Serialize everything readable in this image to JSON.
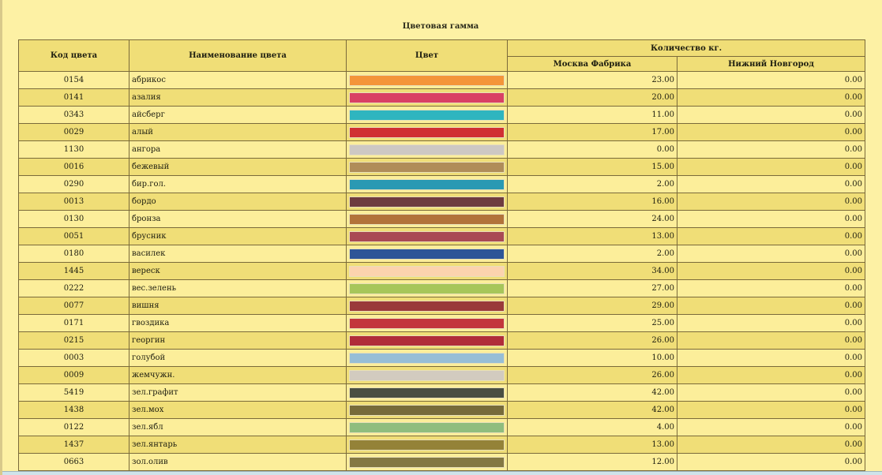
{
  "title": "Цветовая гамма",
  "columns": {
    "code": "Код цвета",
    "name": "Наименование цвета",
    "color": "Цвет",
    "quantity_group": "Количество кг.",
    "moscow": "Москва Фабрика",
    "nnovgorod": "Нижний Новгород"
  },
  "rows": [
    {
      "code": "0154",
      "name": "абрикос",
      "color": "#f4953a",
      "moscow": "23.00",
      "nnovgorod": "0.00"
    },
    {
      "code": "0141",
      "name": "азалия",
      "color": "#d94064",
      "moscow": "20.00",
      "nnovgorod": "0.00"
    },
    {
      "code": "0343",
      "name": "айсберг",
      "color": "#2fb5bf",
      "moscow": "11.00",
      "nnovgorod": "0.00"
    },
    {
      "code": "0029",
      "name": "алый",
      "color": "#d03033",
      "moscow": "17.00",
      "nnovgorod": "0.00"
    },
    {
      "code": "1130",
      "name": "ангора",
      "color": "#cdc8c3",
      "moscow": "0.00",
      "nnovgorod": "0.00"
    },
    {
      "code": "0016",
      "name": "бежевый",
      "color": "#b08d59",
      "moscow": "15.00",
      "nnovgorod": "0.00"
    },
    {
      "code": "0290",
      "name": "бир.гол.",
      "color": "#2a99b3",
      "moscow": "2.00",
      "nnovgorod": "0.00"
    },
    {
      "code": "0013",
      "name": "бордо",
      "color": "#6e3c3f",
      "moscow": "16.00",
      "nnovgorod": "0.00"
    },
    {
      "code": "0130",
      "name": "бронза",
      "color": "#b2733a",
      "moscow": "24.00",
      "nnovgorod": "0.00"
    },
    {
      "code": "0051",
      "name": "брусник",
      "color": "#a94a54",
      "moscow": "13.00",
      "nnovgorod": "0.00"
    },
    {
      "code": "0180",
      "name": "василек",
      "color": "#2e5597",
      "moscow": "2.00",
      "nnovgorod": "0.00"
    },
    {
      "code": "1445",
      "name": "вереск",
      "color": "#fcd3ae",
      "moscow": "34.00",
      "nnovgorod": "0.00"
    },
    {
      "code": "0222",
      "name": "вес.зелень",
      "color": "#a7c65a",
      "moscow": "27.00",
      "nnovgorod": "0.00"
    },
    {
      "code": "0077",
      "name": "вишня",
      "color": "#9a3a3a",
      "moscow": "29.00",
      "nnovgorod": "0.00"
    },
    {
      "code": "0171",
      "name": "гвоздика",
      "color": "#c3373c",
      "moscow": "25.00",
      "nnovgorod": "0.00"
    },
    {
      "code": "0215",
      "name": "георгин",
      "color": "#b02c39",
      "moscow": "26.00",
      "nnovgorod": "0.00"
    },
    {
      "code": "0003",
      "name": "голубой",
      "color": "#97bed6",
      "moscow": "10.00",
      "nnovgorod": "0.00"
    },
    {
      "code": "0009",
      "name": "жемчужн.",
      "color": "#d2cbbf",
      "moscow": "26.00",
      "nnovgorod": "0.00"
    },
    {
      "code": "5419",
      "name": "зел.графит",
      "color": "#4a4f42",
      "moscow": "42.00",
      "nnovgorod": "0.00"
    },
    {
      "code": "1438",
      "name": "зел.мох",
      "color": "#776b3a",
      "moscow": "42.00",
      "nnovgorod": "0.00"
    },
    {
      "code": "0122",
      "name": "зел.ябл",
      "color": "#8fbd7e",
      "moscow": "4.00",
      "nnovgorod": "0.00"
    },
    {
      "code": "1437",
      "name": "зел.янтарь",
      "color": "#948238",
      "moscow": "13.00",
      "nnovgorod": "0.00"
    },
    {
      "code": "0663",
      "name": "зол.олив",
      "color": "#847843",
      "moscow": "12.00",
      "nnovgorod": "0.00"
    }
  ]
}
